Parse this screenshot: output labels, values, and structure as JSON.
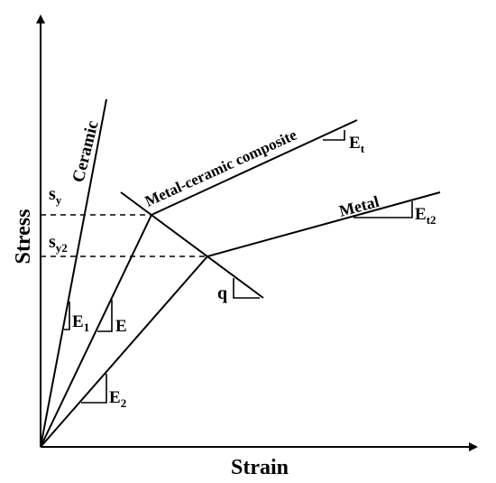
{
  "axes": {
    "x_label": "Strain",
    "y_label": "Stress"
  },
  "curves": {
    "ceramic": "Ceramic",
    "composite": "Metal-ceramic composite",
    "metal": "Metal"
  },
  "stress_levels": {
    "sy_main": "s",
    "sy_sub": "y",
    "sy2_main": "s",
    "sy2_sub": "y2"
  },
  "moduli": {
    "E1_main": "E",
    "E1_sub": "1",
    "E": "E",
    "E2_main": "E",
    "E2_sub": "2",
    "Et_main": "E",
    "Et_sub": "t",
    "Et2_main": "E",
    "Et2_sub": "t2",
    "q": "q"
  }
}
